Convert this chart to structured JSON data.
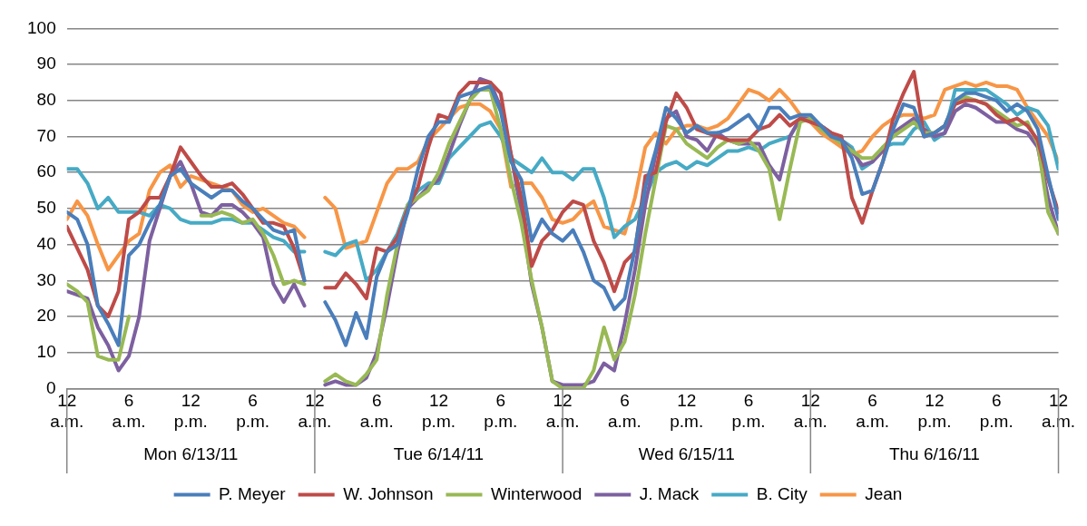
{
  "chart_data": {
    "type": "line",
    "legend": "bottom",
    "grid": "y",
    "marker": "none",
    "line_style": "solid",
    "xlim": [
      "--06-13T00:00",
      "--06-17T00:00"
    ],
    "ylim": [
      0,
      100
    ],
    "yticks": [
      0,
      10,
      20,
      30,
      40,
      50,
      60,
      70,
      80,
      90,
      100
    ],
    "xticks": [
      {
        "value": "--06-13T00:00",
        "label": "12 a.m."
      },
      {
        "value": "--06-13T06:00",
        "label": "6 a.m."
      },
      {
        "value": "--06-13T12:00",
        "label": "12 p.m."
      },
      {
        "value": "--06-13T18:00",
        "label": "6 p.m."
      },
      {
        "value": "--06-14T00:00",
        "label": "12 a.m."
      },
      {
        "value": "--06-14T06:00",
        "label": "6 a.m."
      },
      {
        "value": "--06-14T12:00",
        "label": "12 p.m."
      },
      {
        "value": "--06-14T18:00",
        "label": "6 p.m."
      },
      {
        "value": "--06-15T00:00",
        "label": "12 a.m."
      },
      {
        "value": "--06-15T06:00",
        "label": "6 a.m."
      },
      {
        "value": "--06-15T12:00",
        "label": "12 p.m."
      },
      {
        "value": "--06-15T18:00",
        "label": "6 p.m."
      },
      {
        "value": "--06-16T00:00",
        "label": "12 a.m."
      },
      {
        "value": "--06-16T06:00",
        "label": "6 a.m."
      },
      {
        "value": "--06-16T12:00",
        "label": "12 p.m."
      },
      {
        "value": "--06-16T18:00",
        "label": "6 p.m."
      },
      {
        "value": "--06-17T00:00",
        "label": "12 a.m."
      }
    ],
    "annotations": [
      "Mon 6/13/11",
      "Tue 6/14/11",
      "Wed 6/15/11",
      "Thu 6/16/11"
    ],
    "x": [
      "--06-13T00:00",
      "--06-13T01:00",
      "--06-13T02:00",
      "--06-13T03:00",
      "--06-13T04:00",
      "--06-13T05:00",
      "--06-13T06:00",
      "--06-13T07:00",
      "--06-13T08:00",
      "--06-13T09:00",
      "--06-13T10:00",
      "--06-13T11:00",
      "--06-13T12:00",
      "--06-13T13:00",
      "--06-13T14:00",
      "--06-13T15:00",
      "--06-13T16:00",
      "--06-13T17:00",
      "--06-13T18:00",
      "--06-13T19:00",
      "--06-13T20:00",
      "--06-13T21:00",
      "--06-13T22:00",
      "--06-13T23:00",
      "--06-14T00:00",
      "--06-14T01:00",
      "--06-14T02:00",
      "--06-14T03:00",
      "--06-14T04:00",
      "--06-14T05:00",
      "--06-14T06:00",
      "--06-14T07:00",
      "--06-14T08:00",
      "--06-14T09:00",
      "--06-14T10:00",
      "--06-14T11:00",
      "--06-14T12:00",
      "--06-14T13:00",
      "--06-14T14:00",
      "--06-14T15:00",
      "--06-14T16:00",
      "--06-14T17:00",
      "--06-14T18:00",
      "--06-14T19:00",
      "--06-14T20:00",
      "--06-14T21:00",
      "--06-14T22:00",
      "--06-14T23:00",
      "--06-15T00:00",
      "--06-15T01:00",
      "--06-15T02:00",
      "--06-15T03:00",
      "--06-15T04:00",
      "--06-15T05:00",
      "--06-15T06:00",
      "--06-15T07:00",
      "--06-15T08:00",
      "--06-15T09:00",
      "--06-15T10:00",
      "--06-15T11:00",
      "--06-15T12:00",
      "--06-15T13:00",
      "--06-15T14:00",
      "--06-15T15:00",
      "--06-15T16:00",
      "--06-15T17:00",
      "--06-15T18:00",
      "--06-15T19:00",
      "--06-15T20:00",
      "--06-15T21:00",
      "--06-15T22:00",
      "--06-15T23:00",
      "--06-16T00:00",
      "--06-16T01:00",
      "--06-16T02:00",
      "--06-16T03:00",
      "--06-16T04:00",
      "--06-16T05:00",
      "--06-16T06:00",
      "--06-16T07:00",
      "--06-16T08:00",
      "--06-16T09:00",
      "--06-16T10:00",
      "--06-16T11:00",
      "--06-16T12:00",
      "--06-16T13:00",
      "--06-16T14:00",
      "--06-16T15:00",
      "--06-16T16:00",
      "--06-16T17:00",
      "--06-16T18:00",
      "--06-16T19:00",
      "--06-16T20:00",
      "--06-16T21:00",
      "--06-16T22:00",
      "--06-16T23:00",
      "--06-17T00:00"
    ],
    "series": [
      {
        "name": "P. Meyer",
        "color": "#4a7ebb",
        "values": [
          49,
          47,
          40,
          23,
          18,
          12,
          37,
          40,
          46,
          51,
          59,
          61,
          57,
          55,
          53,
          55,
          55,
          52,
          50,
          47,
          44,
          43,
          44,
          30,
          null,
          24,
          19,
          12,
          21,
          14,
          31,
          38,
          40,
          49,
          61,
          70,
          74,
          74,
          81,
          82,
          83,
          84,
          77,
          63,
          58,
          41,
          47,
          43,
          41,
          44,
          38,
          30,
          28,
          22,
          25,
          39,
          56,
          66,
          78,
          75,
          71,
          73,
          71,
          71,
          72,
          74,
          76,
          72,
          78,
          78,
          75,
          76,
          76,
          73,
          70,
          69,
          64,
          54,
          55,
          63,
          72,
          79,
          78,
          70,
          71,
          73,
          80,
          82,
          82,
          81,
          80,
          77,
          79,
          77,
          72,
          59,
          47
        ]
      },
      {
        "name": "W. Johnson",
        "color": "#be4b48",
        "values": [
          45,
          39,
          33,
          23,
          20,
          27,
          47,
          49,
          53,
          53,
          59,
          67,
          63,
          59,
          56,
          56,
          57,
          54,
          50,
          46,
          46,
          45,
          39,
          30,
          null,
          28,
          28,
          32,
          29,
          25,
          39,
          38,
          42,
          50,
          56,
          67,
          76,
          75,
          82,
          85,
          85,
          85,
          82,
          65,
          53,
          34,
          41,
          44,
          49,
          52,
          51,
          41,
          35,
          27,
          35,
          38,
          59,
          60,
          74,
          82,
          78,
          72,
          71,
          70,
          69,
          69,
          69,
          72,
          73,
          76,
          73,
          75,
          74,
          73,
          71,
          70,
          53,
          46,
          55,
          63,
          75,
          82,
          88,
          70,
          71,
          73,
          79,
          80,
          80,
          79,
          76,
          74,
          75,
          73,
          69,
          58,
          49
        ]
      },
      {
        "name": "Winterwood",
        "color": "#98b954",
        "values": [
          29,
          27,
          24,
          9,
          8,
          8,
          20,
          null,
          null,
          null,
          null,
          null,
          null,
          48,
          48,
          49,
          48,
          46,
          47,
          43,
          37,
          29,
          30,
          29,
          null,
          2,
          4,
          2,
          1,
          4,
          8,
          26,
          40,
          51,
          53,
          55,
          60,
          68,
          74,
          80,
          83,
          83,
          72,
          58,
          46,
          30,
          17,
          2,
          0,
          0,
          0,
          5,
          17,
          8,
          13,
          26,
          43,
          58,
          73,
          72,
          68,
          66,
          64,
          67,
          69,
          68,
          69,
          66,
          61,
          47,
          61,
          74,
          75,
          72,
          70,
          68,
          66,
          64,
          64,
          67,
          70,
          72,
          74,
          71,
          71,
          73,
          80,
          81,
          80,
          79,
          77,
          75,
          73,
          74,
          68,
          49,
          43
        ]
      },
      {
        "name": "J. Mack",
        "color": "#7d60a0",
        "values": [
          27,
          26,
          25,
          17,
          12,
          5,
          9,
          20,
          41,
          50,
          59,
          63,
          57,
          49,
          48,
          51,
          51,
          49,
          46,
          42,
          29,
          24,
          29,
          23,
          null,
          1,
          2,
          1,
          1,
          3,
          10,
          23,
          38,
          50,
          53,
          56,
          58,
          65,
          73,
          80,
          86,
          85,
          78,
          65,
          49,
          29,
          17,
          2,
          1,
          1,
          1,
          2,
          7,
          5,
          18,
          33,
          51,
          65,
          75,
          77,
          70,
          69,
          66,
          71,
          69,
          68,
          68,
          68,
          62,
          58,
          70,
          75,
          75,
          73,
          71,
          69,
          66,
          62,
          63,
          66,
          71,
          73,
          75,
          72,
          70,
          71,
          77,
          79,
          78,
          76,
          74,
          74,
          72,
          71,
          67,
          53,
          43
        ]
      },
      {
        "name": "B. City",
        "color": "#46aac5",
        "values": [
          61,
          61,
          57,
          50,
          53,
          49,
          49,
          49,
          48,
          51,
          50,
          47,
          46,
          46,
          46,
          47,
          47,
          46,
          46,
          44,
          42,
          41,
          38,
          38,
          null,
          38,
          37,
          40,
          41,
          30,
          33,
          38,
          43,
          51,
          55,
          57,
          57,
          64,
          67,
          70,
          73,
          74,
          70,
          64,
          62,
          60,
          64,
          60,
          60,
          58,
          61,
          61,
          53,
          42,
          45,
          47,
          53,
          60,
          62,
          63,
          61,
          63,
          62,
          64,
          66,
          66,
          67,
          66,
          68,
          69,
          70,
          75,
          75,
          73,
          71,
          69,
          67,
          61,
          63,
          67,
          68,
          68,
          72,
          74,
          69,
          71,
          83,
          83,
          83,
          83,
          81,
          79,
          76,
          78,
          77,
          73,
          61
        ]
      },
      {
        "name": "Jean",
        "color": "#f79646",
        "values": [
          47,
          52,
          48,
          40,
          33,
          37,
          41,
          43,
          55,
          60,
          62,
          56,
          59,
          58,
          57,
          56,
          55,
          51,
          49,
          50,
          48,
          46,
          45,
          42,
          null,
          53,
          50,
          39,
          40,
          41,
          49,
          57,
          61,
          61,
          63,
          69,
          72,
          75,
          78,
          79,
          79,
          77,
          72,
          56,
          57,
          57,
          53,
          47,
          46,
          47,
          50,
          52,
          45,
          44,
          43,
          53,
          67,
          71,
          68,
          72,
          73,
          73,
          72,
          73,
          75,
          79,
          83,
          82,
          80,
          83,
          80,
          76,
          74,
          71,
          69,
          67,
          65,
          66,
          70,
          73,
          75,
          76,
          76,
          75,
          76,
          83,
          84,
          85,
          84,
          85,
          84,
          84,
          83,
          78,
          74,
          70,
          63
        ]
      }
    ]
  }
}
